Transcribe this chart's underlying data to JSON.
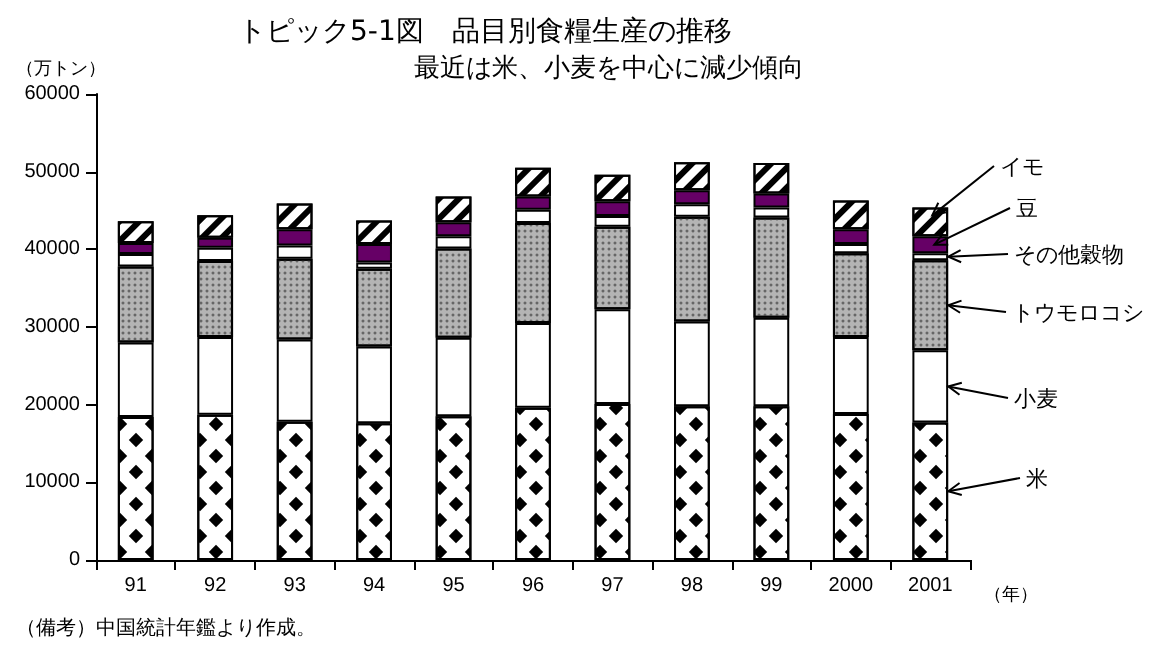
{
  "chart_data": {
    "type": "bar",
    "stacked": true,
    "title": "トピック5-1図　品目別食糧生産の推移",
    "subtitle": "最近は米、小麦を中心に減少傾向",
    "ylabel": "（万トン）",
    "xlabel": "（年）",
    "annotations": [
      "（備考）中国統計年鑑より作成。"
    ],
    "categories": [
      "91",
      "92",
      "93",
      "94",
      "95",
      "96",
      "97",
      "98",
      "99",
      "2000",
      "2001"
    ],
    "series": [
      {
        "name": "米",
        "color": "#ffffff",
        "values": [
          18400,
          18700,
          17800,
          17600,
          18500,
          19600,
          20100,
          19800,
          19800,
          18800,
          17700
        ]
      },
      {
        "name": "小麦",
        "color": "#ffffff",
        "values": [
          9600,
          10000,
          10600,
          9900,
          10100,
          10900,
          12200,
          10900,
          11400,
          9900,
          9300
        ]
      },
      {
        "name": "トウモロコシ",
        "color": "#b4b4b4",
        "values": [
          9800,
          9800,
          10400,
          10000,
          11500,
          12900,
          10600,
          13500,
          12900,
          10800,
          11600
        ]
      },
      {
        "name": "その他穀物",
        "color": "#ffffff",
        "values": [
          1600,
          1700,
          1700,
          800,
          1600,
          1700,
          1400,
          1600,
          1300,
          1200,
          900
        ]
      },
      {
        "name": "豆",
        "color": "#660066",
        "values": [
          1400,
          1300,
          2100,
          2400,
          1800,
          1700,
          1900,
          1800,
          1800,
          1900,
          2200
        ]
      },
      {
        "name": "イモ",
        "color": "#ffffff",
        "values": [
          2800,
          2900,
          3300,
          3000,
          3300,
          3700,
          3400,
          3600,
          3900,
          3700,
          3700
        ]
      }
    ],
    "ylim": [
      0,
      60000
    ],
    "yticks": [
      0,
      10000,
      20000,
      30000,
      40000,
      50000,
      60000
    ],
    "grid": false,
    "legend": "right"
  }
}
